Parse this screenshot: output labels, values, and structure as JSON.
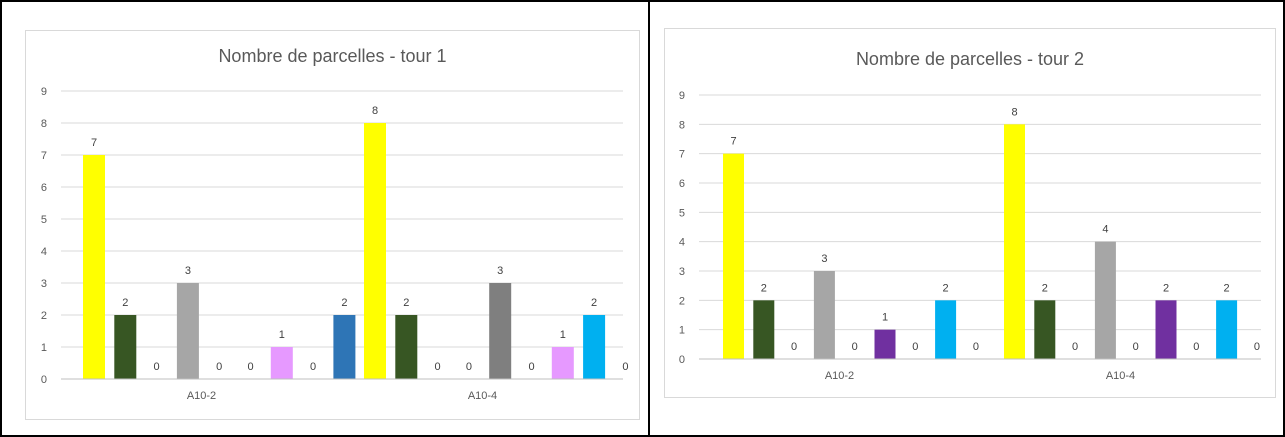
{
  "chart_data": [
    {
      "type": "bar",
      "title": "Nombre de parcelles - tour 1",
      "categories": [
        "A10-2",
        "A10-4"
      ],
      "ylim": [
        0,
        9
      ],
      "yticks": [
        0,
        1,
        2,
        3,
        4,
        5,
        6,
        7,
        8,
        9
      ],
      "grid": true,
      "colors": [
        "#ffff00",
        "#375623",
        "#808080",
        "#a6a6a6",
        "#7f7f7f",
        "#f4b183",
        "#e699ff",
        "#9999ff",
        "#2e75b6",
        "#00b0f0"
      ],
      "groups": [
        {
          "category": "A10-2",
          "values": [
            7,
            2,
            0,
            3,
            0,
            0,
            1,
            0,
            2
          ],
          "bar_colors": [
            "#ffff00",
            "#375623",
            "#808080",
            "#a6a6a6",
            "#7f7f7f",
            "#f4b183",
            "#e699ff",
            "#9999ff",
            "#2e75b6"
          ]
        },
        {
          "category": "A10-4",
          "values": [
            8,
            2,
            0,
            0,
            3,
            0,
            1,
            2,
            0
          ],
          "bar_colors": [
            "#ffff00",
            "#375623",
            "#808080",
            "#a6a6a6",
            "#7f7f7f",
            "#f4b183",
            "#e699ff",
            "#00b0f0",
            "#9999ff"
          ]
        }
      ]
    },
    {
      "type": "bar",
      "title": "Nombre de parcelles - tour 2",
      "categories": [
        "A10-2",
        "A10-4"
      ],
      "ylim": [
        0,
        9
      ],
      "yticks": [
        0,
        1,
        2,
        3,
        4,
        5,
        6,
        7,
        8,
        9
      ],
      "grid": true,
      "groups": [
        {
          "category": "A10-2",
          "values": [
            7,
            2,
            0,
            3,
            0,
            1,
            0,
            2,
            0
          ],
          "bar_colors": [
            "#ffff00",
            "#375623",
            "#808080",
            "#a6a6a6",
            "#7f7f7f",
            "#7030a0",
            "#9999ff",
            "#00b0f0",
            "#2e75b6"
          ]
        },
        {
          "category": "A10-4",
          "values": [
            8,
            2,
            0,
            4,
            0,
            2,
            0,
            2,
            0
          ],
          "bar_colors": [
            "#ffff00",
            "#375623",
            "#808080",
            "#a6a6a6",
            "#7f7f7f",
            "#7030a0",
            "#9999ff",
            "#00b0f0",
            "#2e75b6"
          ]
        }
      ]
    }
  ]
}
